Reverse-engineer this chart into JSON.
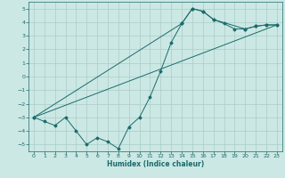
{
  "xlabel": "Humidex (Indice chaleur)",
  "background_color": "#cce8e4",
  "grid_color": "#aaccc8",
  "line_color": "#1a6b6b",
  "xlim": [
    -0.5,
    23.5
  ],
  "ylim": [
    -5.5,
    5.5
  ],
  "xticks": [
    0,
    1,
    2,
    3,
    4,
    5,
    6,
    7,
    8,
    9,
    10,
    11,
    12,
    13,
    14,
    15,
    16,
    17,
    18,
    19,
    20,
    21,
    22,
    23
  ],
  "yticks": [
    -5,
    -4,
    -3,
    -2,
    -1,
    0,
    1,
    2,
    3,
    4,
    5
  ],
  "series1_x": [
    0,
    1,
    2,
    3,
    4,
    5,
    6,
    7,
    8,
    9,
    10,
    11,
    12,
    13,
    14,
    15,
    16,
    17,
    18,
    19,
    20,
    21,
    22,
    23
  ],
  "series1_y": [
    -3.0,
    -3.3,
    -3.6,
    -3.0,
    -4.0,
    -5.0,
    -4.5,
    -4.8,
    -5.3,
    -3.7,
    -3.0,
    -1.5,
    0.4,
    2.5,
    3.9,
    5.0,
    4.8,
    4.2,
    3.9,
    3.5,
    3.5,
    3.7,
    3.8,
    3.8
  ],
  "series2_x": [
    0,
    14,
    15,
    16,
    17,
    20,
    21,
    22,
    23
  ],
  "series2_y": [
    -3.0,
    3.9,
    5.0,
    4.8,
    4.2,
    3.5,
    3.7,
    3.8,
    3.8
  ],
  "series3_x": [
    0,
    23
  ],
  "series3_y": [
    -3.0,
    3.8
  ]
}
